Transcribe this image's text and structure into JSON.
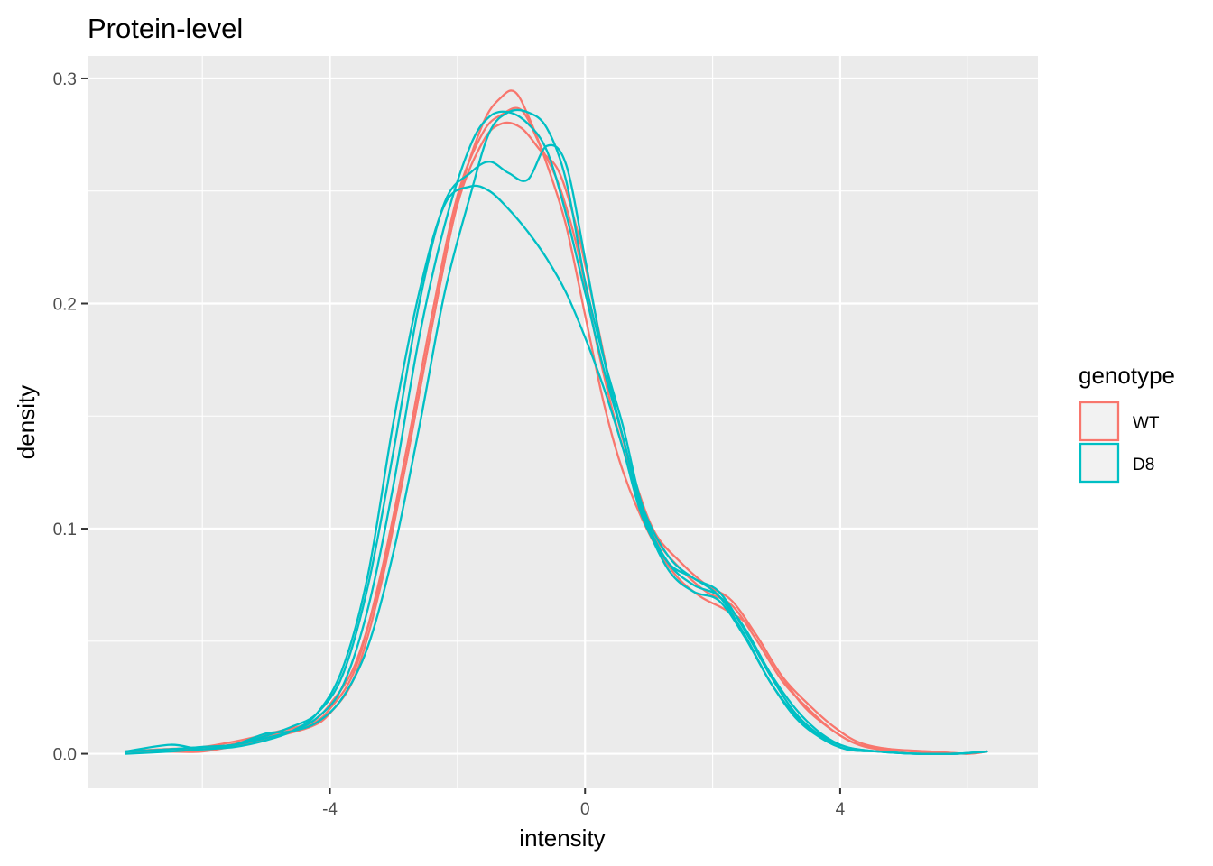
{
  "chart_data": {
    "type": "line",
    "title": "Protein-level",
    "xlabel": "intensity",
    "ylabel": "density",
    "xlim": [
      -7.8,
      7.1
    ],
    "ylim": [
      -0.015,
      0.31
    ],
    "x_major_ticks": [
      -4,
      0,
      4
    ],
    "x_minor_ticks": [
      -6,
      -2,
      2,
      6
    ],
    "y_major_ticks": [
      0.0,
      0.1,
      0.2,
      0.3
    ],
    "y_minor_ticks": [
      0.05,
      0.15,
      0.25
    ],
    "x_tick_labels": [
      "-4",
      "0",
      "4"
    ],
    "y_tick_labels": [
      "0.0",
      "0.1",
      "0.2",
      "0.3"
    ],
    "grid": true,
    "legend": {
      "title": "genotype",
      "placement": "right",
      "entries": [
        {
          "label": "WT",
          "color": "#F8766D"
        },
        {
          "label": "D8",
          "color": "#00BFC4"
        }
      ]
    },
    "series": [
      {
        "group": "WT",
        "color": "#F8766D",
        "x": [
          -7.2,
          -6.6,
          -6.0,
          -5.4,
          -4.8,
          -4.3,
          -4.0,
          -3.6,
          -3.2,
          -2.8,
          -2.4,
          -2.0,
          -1.6,
          -1.3,
          -1.1,
          -0.9,
          -0.6,
          -0.3,
          0.0,
          0.3,
          0.6,
          1.0,
          1.4,
          1.8,
          2.2,
          2.6,
          3.0,
          3.4,
          3.8,
          4.2,
          4.6,
          5.2,
          5.8,
          6.3
        ],
        "y": [
          0.001,
          0.001,
          0.001,
          0.004,
          0.008,
          0.012,
          0.018,
          0.035,
          0.075,
          0.13,
          0.19,
          0.245,
          0.28,
          0.292,
          0.294,
          0.284,
          0.262,
          0.235,
          0.195,
          0.155,
          0.125,
          0.098,
          0.08,
          0.07,
          0.064,
          0.056,
          0.038,
          0.022,
          0.012,
          0.005,
          0.002,
          0.001,
          0.0,
          0.001
        ]
      },
      {
        "group": "WT",
        "color": "#F8766D",
        "x": [
          -7.2,
          -6.6,
          -6.0,
          -5.4,
          -4.8,
          -4.3,
          -4.0,
          -3.6,
          -3.2,
          -2.8,
          -2.4,
          -2.0,
          -1.6,
          -1.3,
          -1.0,
          -0.7,
          -0.4,
          -0.1,
          0.2,
          0.5,
          0.8,
          1.1,
          1.5,
          1.9,
          2.3,
          2.7,
          3.1,
          3.5,
          3.9,
          4.3,
          4.8,
          5.4,
          6.0,
          6.3
        ],
        "y": [
          0.001,
          0.002,
          0.002,
          0.005,
          0.009,
          0.013,
          0.02,
          0.038,
          0.08,
          0.135,
          0.195,
          0.248,
          0.276,
          0.284,
          0.286,
          0.27,
          0.252,
          0.222,
          0.18,
          0.145,
          0.118,
          0.096,
          0.082,
          0.072,
          0.066,
          0.05,
          0.032,
          0.02,
          0.01,
          0.004,
          0.002,
          0.001,
          0.0,
          0.001
        ]
      },
      {
        "group": "WT",
        "color": "#F8766D",
        "x": [
          -7.2,
          -6.6,
          -6.0,
          -5.4,
          -4.8,
          -4.3,
          -4.0,
          -3.6,
          -3.2,
          -2.8,
          -2.4,
          -2.0,
          -1.6,
          -1.3,
          -1.0,
          -0.7,
          -0.4,
          -0.1,
          0.2,
          0.5,
          0.8,
          1.1,
          1.5,
          1.9,
          2.3,
          2.7,
          3.1,
          3.5,
          3.9,
          4.3,
          4.8,
          5.4,
          6.0,
          6.3
        ],
        "y": [
          0.001,
          0.002,
          0.003,
          0.006,
          0.01,
          0.014,
          0.022,
          0.04,
          0.078,
          0.13,
          0.19,
          0.244,
          0.272,
          0.28,
          0.278,
          0.268,
          0.258,
          0.23,
          0.19,
          0.15,
          0.12,
          0.098,
          0.085,
          0.075,
          0.068,
          0.052,
          0.034,
          0.022,
          0.012,
          0.005,
          0.002,
          0.001,
          0.0,
          0.001
        ]
      },
      {
        "group": "D8",
        "color": "#00BFC4",
        "x": [
          -7.2,
          -6.5,
          -6.0,
          -5.5,
          -5.0,
          -4.6,
          -4.2,
          -3.8,
          -3.4,
          -3.0,
          -2.6,
          -2.2,
          -1.8,
          -1.5,
          -1.2,
          -0.9,
          -0.6,
          -0.3,
          0.0,
          0.3,
          0.6,
          0.9,
          1.3,
          1.7,
          2.1,
          2.5,
          2.9,
          3.3,
          3.7,
          4.1,
          4.6,
          5.2,
          5.8,
          6.3
        ],
        "y": [
          0.001,
          0.004,
          0.002,
          0.004,
          0.009,
          0.01,
          0.014,
          0.025,
          0.048,
          0.09,
          0.145,
          0.205,
          0.248,
          0.276,
          0.285,
          0.285,
          0.278,
          0.255,
          0.21,
          0.175,
          0.145,
          0.11,
          0.088,
          0.078,
          0.072,
          0.055,
          0.035,
          0.018,
          0.008,
          0.003,
          0.001,
          0.0,
          0.0,
          0.001
        ]
      },
      {
        "group": "D8",
        "color": "#00BFC4",
        "x": [
          -7.2,
          -6.5,
          -6.0,
          -5.5,
          -5.0,
          -4.6,
          -4.2,
          -3.8,
          -3.4,
          -3.0,
          -2.6,
          -2.2,
          -1.8,
          -1.5,
          -1.2,
          -0.9,
          -0.6,
          -0.3,
          0.0,
          0.3,
          0.6,
          0.9,
          1.3,
          1.7,
          2.1,
          2.5,
          2.9,
          3.3,
          3.7,
          4.1,
          4.6,
          5.2,
          5.8,
          6.3
        ],
        "y": [
          0.001,
          0.002,
          0.003,
          0.004,
          0.008,
          0.012,
          0.018,
          0.035,
          0.075,
          0.135,
          0.2,
          0.245,
          0.258,
          0.263,
          0.258,
          0.255,
          0.27,
          0.262,
          0.22,
          0.175,
          0.14,
          0.108,
          0.085,
          0.075,
          0.07,
          0.056,
          0.036,
          0.02,
          0.009,
          0.003,
          0.001,
          0.0,
          0.0,
          0.001
        ]
      },
      {
        "group": "D8",
        "color": "#00BFC4",
        "x": [
          -7.2,
          -6.5,
          -6.0,
          -5.5,
          -5.0,
          -4.6,
          -4.2,
          -3.8,
          -3.4,
          -3.0,
          -2.6,
          -2.2,
          -1.8,
          -1.5,
          -1.2,
          -0.9,
          -0.6,
          -0.3,
          0.0,
          0.3,
          0.6,
          0.9,
          1.3,
          1.7,
          2.1,
          2.5,
          2.9,
          3.3,
          3.7,
          4.1,
          4.6,
          5.2,
          5.8,
          6.3
        ],
        "y": [
          0.001,
          0.002,
          0.003,
          0.004,
          0.007,
          0.01,
          0.016,
          0.03,
          0.065,
          0.12,
          0.185,
          0.235,
          0.27,
          0.283,
          0.285,
          0.28,
          0.268,
          0.24,
          0.205,
          0.17,
          0.14,
          0.107,
          0.082,
          0.072,
          0.068,
          0.052,
          0.032,
          0.016,
          0.007,
          0.002,
          0.001,
          0.0,
          0.0,
          0.001
        ]
      },
      {
        "group": "D8",
        "color": "#00BFC4",
        "x": [
          -7.2,
          -6.5,
          -6.0,
          -5.5,
          -5.0,
          -4.6,
          -4.2,
          -3.8,
          -3.4,
          -3.0,
          -2.6,
          -2.2,
          -1.8,
          -1.5,
          -1.2,
          -0.9,
          -0.6,
          -0.3,
          0.0,
          0.3,
          0.6,
          0.9,
          1.3,
          1.7,
          2.1,
          2.5,
          2.9,
          3.3,
          3.7,
          4.1,
          4.6,
          5.2,
          5.8,
          6.3
        ],
        "y": [
          0.0,
          0.001,
          0.002,
          0.003,
          0.006,
          0.01,
          0.018,
          0.038,
          0.08,
          0.148,
          0.205,
          0.244,
          0.252,
          0.25,
          0.242,
          0.232,
          0.22,
          0.205,
          0.185,
          0.162,
          0.135,
          0.105,
          0.085,
          0.078,
          0.07,
          0.053,
          0.032,
          0.017,
          0.007,
          0.002,
          0.001,
          0.0,
          0.0,
          0.001
        ]
      }
    ]
  }
}
